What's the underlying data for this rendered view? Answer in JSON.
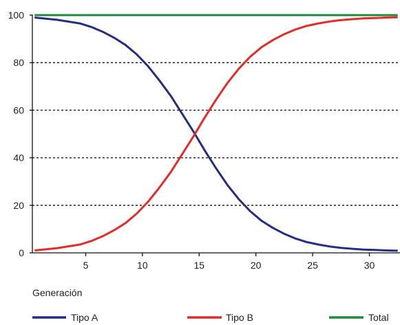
{
  "chart_data": {
    "type": "line",
    "title": "",
    "xlabel": "Generación",
    "ylabel": "",
    "xlim": [
      0.3,
      32.7
    ],
    "ylim": [
      0,
      100
    ],
    "x_ticks": [
      5,
      10,
      15,
      20,
      25,
      30
    ],
    "y_ticks": [
      0,
      20,
      40,
      60,
      80,
      100
    ],
    "grid": "horizontal dotted",
    "legend_position": "bottom",
    "series": [
      {
        "name": "Tipo A",
        "color": "#232e82",
        "x": [
          0.5,
          2.5,
          4.5,
          5.5,
          6.5,
          7.5,
          8.5,
          9.5,
          10.5,
          11.5,
          12.5,
          13.5,
          14.5,
          15.5,
          16.5,
          17.5,
          18.5,
          19.5,
          20.5,
          21.5,
          22.5,
          23.5,
          24.5,
          25.5,
          26.5,
          27.5,
          28.5,
          29.5,
          30.5,
          31.5,
          32.5
        ],
        "values": [
          99,
          98,
          96.5,
          95,
          93,
          90.5,
          87.5,
          83.5,
          78.5,
          72.5,
          66,
          58.5,
          51,
          43,
          35.5,
          28.5,
          22.5,
          17.5,
          13.5,
          10.5,
          8,
          6,
          4.5,
          3.5,
          2.7,
          2.1,
          1.7,
          1.4,
          1.2,
          1.0,
          0.9
        ]
      },
      {
        "name": "Tipo B",
        "color": "#e42b27",
        "x": [
          0.5,
          2.5,
          4.5,
          5.5,
          6.5,
          7.5,
          8.5,
          9.5,
          10.5,
          11.5,
          12.5,
          13.5,
          14.5,
          15.5,
          16.5,
          17.5,
          18.5,
          19.5,
          20.5,
          21.5,
          22.5,
          23.5,
          24.5,
          25.5,
          26.5,
          27.5,
          28.5,
          29.5,
          30.5,
          31.5,
          32.5
        ],
        "values": [
          1,
          2,
          3.5,
          5,
          7,
          9.5,
          12.5,
          16.5,
          21.5,
          27.5,
          34,
          41.5,
          49,
          57,
          64.5,
          71.5,
          77.5,
          82.5,
          86.5,
          89.5,
          92,
          94,
          95.5,
          96.5,
          97.3,
          97.9,
          98.3,
          98.6,
          98.8,
          99.0,
          99.1
        ]
      },
      {
        "name": "Total",
        "color": "#1f8a3f",
        "x": [
          0.5,
          32.5
        ],
        "values": [
          100,
          100
        ]
      }
    ]
  }
}
